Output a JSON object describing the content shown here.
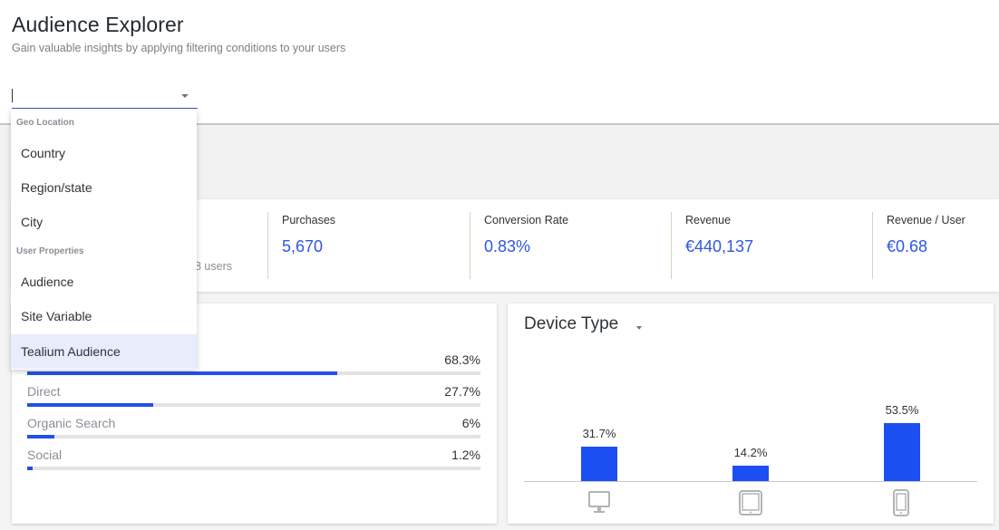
{
  "header": {
    "title": "Audience Explorer",
    "subtitle": "Gain valuable insights by applying filtering conditions to your users",
    "filter_value": ""
  },
  "dropdown": {
    "groups": [
      {
        "label": "Geo Location",
        "items": [
          "Country",
          "Region/state",
          "City"
        ]
      },
      {
        "label": "User Properties",
        "items": [
          "Audience",
          "Site Variable",
          "Tealium Audience"
        ]
      }
    ],
    "highlighted_item": "Tealium Audience"
  },
  "kpis": {
    "partial_text": "8 users",
    "items": [
      {
        "label": "Purchases",
        "value": "5,670"
      },
      {
        "label": "Conversion Rate",
        "value": "0.83%"
      },
      {
        "label": "Revenue",
        "value": "€440,137"
      },
      {
        "label": "Revenue / User",
        "value": "€0.68"
      }
    ]
  },
  "channels": {
    "items": [
      {
        "name": "",
        "pct_label": "68.3%",
        "value": 68.3
      },
      {
        "name": "Direct",
        "pct_label": "27.7%",
        "value": 27.7
      },
      {
        "name": "Organic Search",
        "pct_label": "6%",
        "value": 6
      },
      {
        "name": "Social",
        "pct_label": "1.2%",
        "value": 1.2
      }
    ]
  },
  "device_type": {
    "title": "Device Type",
    "icons": [
      "desktop-icon",
      "tablet-icon",
      "mobile-icon"
    ]
  },
  "chart_data": {
    "type": "bar",
    "title": "Device Type",
    "categories": [
      "desktop",
      "tablet",
      "mobile"
    ],
    "values": [
      31.7,
      14.2,
      53.5
    ],
    "labels": [
      "31.7%",
      "14.2%",
      "53.5%"
    ],
    "ylim": [
      0,
      100
    ],
    "grid": false
  },
  "colors": {
    "accent": "#2350e8",
    "bar": "#1c4ff2",
    "highlight": "#e9ecfa"
  }
}
